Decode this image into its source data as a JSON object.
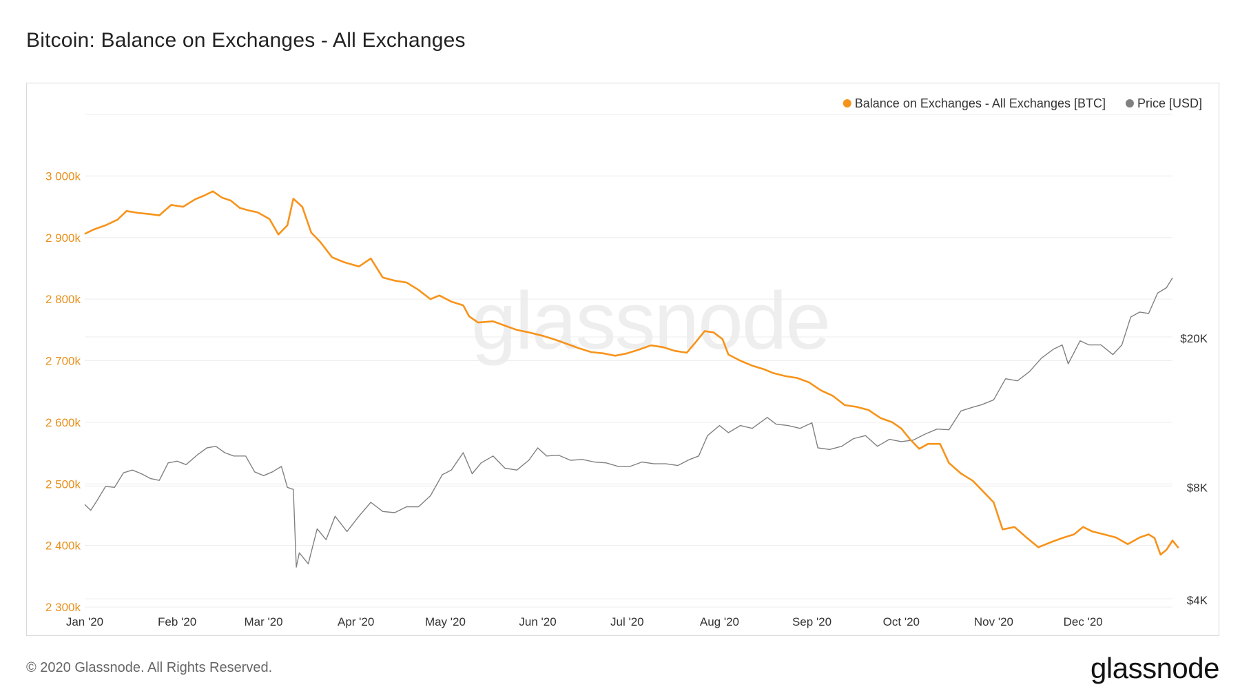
{
  "title": "Bitcoin: Balance on Exchanges - All Exchanges",
  "footer": "© 2020 Glassnode. All Rights Reserved.",
  "logo": "glassnode",
  "watermark": "glassnode",
  "colors": {
    "balance": "#f7931a",
    "price": "#808080",
    "grid": "#ececec",
    "left_axis_text": "#e8901b",
    "right_axis_text": "#333333"
  },
  "chart_data": {
    "type": "line",
    "title": "Bitcoin: Balance on Exchanges - All Exchanges",
    "x_range": [
      "2020-01-01",
      "2020-12-31"
    ],
    "x_ticks": [
      {
        "label": "Jan '20",
        "date": "2020-01-01"
      },
      {
        "label": "Feb '20",
        "date": "2020-02-01"
      },
      {
        "label": "Mar '20",
        "date": "2020-03-01"
      },
      {
        "label": "Apr '20",
        "date": "2020-04-01"
      },
      {
        "label": "May '20",
        "date": "2020-05-01"
      },
      {
        "label": "Jun '20",
        "date": "2020-06-01"
      },
      {
        "label": "Jul '20",
        "date": "2020-07-01"
      },
      {
        "label": "Aug '20",
        "date": "2020-08-01"
      },
      {
        "label": "Sep '20",
        "date": "2020-09-01"
      },
      {
        "label": "Oct '20",
        "date": "2020-10-01"
      },
      {
        "label": "Nov '20",
        "date": "2020-11-01"
      },
      {
        "label": "Dec '20",
        "date": "2020-12-01"
      }
    ],
    "y_left": {
      "unit": "BTC",
      "ylim": [
        2300000,
        3100000
      ],
      "ticks": [
        {
          "label": "2 300k",
          "value": 2300000
        },
        {
          "label": "2 400k",
          "value": 2400000
        },
        {
          "label": "2 500k",
          "value": 2500000
        },
        {
          "label": "2 600k",
          "value": 2600000
        },
        {
          "label": "2 700k",
          "value": 2700000
        },
        {
          "label": "2 800k",
          "value": 2800000
        },
        {
          "label": "2 900k",
          "value": 2900000
        },
        {
          "label": "3 000k",
          "value": 3000000
        }
      ]
    },
    "y_right": {
      "unit": "USD",
      "scale": "log",
      "ticks": [
        {
          "label": "$4K",
          "value": 4000
        },
        {
          "label": "$8K",
          "value": 8000
        },
        {
          "label": "$20K",
          "value": 20000
        }
      ]
    },
    "legend": {
      "placement": "top-right"
    },
    "grid": true,
    "series": [
      {
        "name": "Balance on Exchanges - All Exchanges [BTC]",
        "axis": "left",
        "color": "#f7931a",
        "points": [
          [
            "2020-01-01",
            2906000
          ],
          [
            "2020-01-04",
            2913000
          ],
          [
            "2020-01-08",
            2920000
          ],
          [
            "2020-01-12",
            2929000
          ],
          [
            "2020-01-15",
            2943000
          ],
          [
            "2020-01-19",
            2940000
          ],
          [
            "2020-01-23",
            2938000
          ],
          [
            "2020-01-26",
            2936000
          ],
          [
            "2020-01-30",
            2953000
          ],
          [
            "2020-02-03",
            2950000
          ],
          [
            "2020-02-07",
            2962000
          ],
          [
            "2020-02-10",
            2968000
          ],
          [
            "2020-02-13",
            2975000
          ],
          [
            "2020-02-16",
            2965000
          ],
          [
            "2020-02-19",
            2960000
          ],
          [
            "2020-02-22",
            2948000
          ],
          [
            "2020-02-25",
            2944000
          ],
          [
            "2020-02-28",
            2941000
          ],
          [
            "2020-03-03",
            2930000
          ],
          [
            "2020-03-06",
            2905000
          ],
          [
            "2020-03-09",
            2920000
          ],
          [
            "2020-03-11",
            2963000
          ],
          [
            "2020-03-14",
            2950000
          ],
          [
            "2020-03-17",
            2908000
          ],
          [
            "2020-03-20",
            2893000
          ],
          [
            "2020-03-24",
            2868000
          ],
          [
            "2020-03-28",
            2860000
          ],
          [
            "2020-04-02",
            2853000
          ],
          [
            "2020-04-06",
            2866000
          ],
          [
            "2020-04-10",
            2835000
          ],
          [
            "2020-04-14",
            2830000
          ],
          [
            "2020-04-18",
            2827000
          ],
          [
            "2020-04-22",
            2815000
          ],
          [
            "2020-04-26",
            2800000
          ],
          [
            "2020-04-29",
            2806000
          ],
          [
            "2020-05-03",
            2796000
          ],
          [
            "2020-05-07",
            2790000
          ],
          [
            "2020-05-09",
            2772000
          ],
          [
            "2020-05-12",
            2762000
          ],
          [
            "2020-05-17",
            2764000
          ],
          [
            "2020-05-21",
            2757000
          ],
          [
            "2020-05-25",
            2750000
          ],
          [
            "2020-05-29",
            2746000
          ],
          [
            "2020-06-03",
            2740000
          ],
          [
            "2020-06-07",
            2734000
          ],
          [
            "2020-06-11",
            2727000
          ],
          [
            "2020-06-15",
            2720000
          ],
          [
            "2020-06-19",
            2714000
          ],
          [
            "2020-06-23",
            2712000
          ],
          [
            "2020-06-27",
            2708000
          ],
          [
            "2020-07-01",
            2712000
          ],
          [
            "2020-07-05",
            2718000
          ],
          [
            "2020-07-09",
            2725000
          ],
          [
            "2020-07-13",
            2722000
          ],
          [
            "2020-07-17",
            2716000
          ],
          [
            "2020-07-21",
            2713000
          ],
          [
            "2020-07-24",
            2730000
          ],
          [
            "2020-07-27",
            2748000
          ],
          [
            "2020-07-30",
            2746000
          ],
          [
            "2020-08-02",
            2735000
          ],
          [
            "2020-08-04",
            2710000
          ],
          [
            "2020-08-08",
            2700000
          ],
          [
            "2020-08-12",
            2692000
          ],
          [
            "2020-08-16",
            2686000
          ],
          [
            "2020-08-19",
            2680000
          ],
          [
            "2020-08-23",
            2675000
          ],
          [
            "2020-08-27",
            2672000
          ],
          [
            "2020-08-31",
            2665000
          ],
          [
            "2020-09-04",
            2652000
          ],
          [
            "2020-09-08",
            2643000
          ],
          [
            "2020-09-12",
            2628000
          ],
          [
            "2020-09-16",
            2625000
          ],
          [
            "2020-09-20",
            2620000
          ],
          [
            "2020-09-24",
            2607000
          ],
          [
            "2020-09-28",
            2600000
          ],
          [
            "2020-10-01",
            2590000
          ],
          [
            "2020-10-04",
            2572000
          ],
          [
            "2020-10-07",
            2557000
          ],
          [
            "2020-10-10",
            2565000
          ],
          [
            "2020-10-14",
            2565000
          ],
          [
            "2020-10-17",
            2534000
          ],
          [
            "2020-10-21",
            2517000
          ],
          [
            "2020-10-25",
            2505000
          ],
          [
            "2020-10-29",
            2485000
          ],
          [
            "2020-11-01",
            2470000
          ],
          [
            "2020-11-04",
            2426000
          ],
          [
            "2020-11-08",
            2430000
          ],
          [
            "2020-11-12",
            2413000
          ],
          [
            "2020-11-16",
            2397000
          ],
          [
            "2020-11-20",
            2405000
          ],
          [
            "2020-11-24",
            2412000
          ],
          [
            "2020-11-28",
            2418000
          ],
          [
            "2020-12-01",
            2430000
          ],
          [
            "2020-12-04",
            2423000
          ],
          [
            "2020-12-08",
            2418000
          ],
          [
            "2020-12-12",
            2413000
          ],
          [
            "2020-12-16",
            2402000
          ],
          [
            "2020-12-20",
            2413000
          ],
          [
            "2020-12-23",
            2418000
          ],
          [
            "2020-12-25",
            2412000
          ],
          [
            "2020-12-27",
            2385000
          ],
          [
            "2020-12-29",
            2393000
          ],
          [
            "2020-12-31",
            2408000
          ],
          [
            "2021-01-02",
            2396000
          ]
        ]
      },
      {
        "name": "Price [USD]",
        "axis": "right",
        "color": "#808080",
        "points": [
          [
            "2020-01-01",
            7200
          ],
          [
            "2020-01-03",
            6950
          ],
          [
            "2020-01-05",
            7350
          ],
          [
            "2020-01-08",
            8050
          ],
          [
            "2020-01-11",
            8000
          ],
          [
            "2020-01-14",
            8750
          ],
          [
            "2020-01-17",
            8900
          ],
          [
            "2020-01-20",
            8700
          ],
          [
            "2020-01-23",
            8450
          ],
          [
            "2020-01-26",
            8350
          ],
          [
            "2020-01-29",
            9300
          ],
          [
            "2020-02-01",
            9400
          ],
          [
            "2020-02-04",
            9200
          ],
          [
            "2020-02-08",
            9800
          ],
          [
            "2020-02-11",
            10200
          ],
          [
            "2020-02-14",
            10300
          ],
          [
            "2020-02-17",
            9900
          ],
          [
            "2020-02-20",
            9700
          ],
          [
            "2020-02-24",
            9700
          ],
          [
            "2020-02-27",
            8800
          ],
          [
            "2020-03-01",
            8600
          ],
          [
            "2020-03-04",
            8800
          ],
          [
            "2020-03-07",
            9100
          ],
          [
            "2020-03-09",
            8000
          ],
          [
            "2020-03-11",
            7900
          ],
          [
            "2020-03-12",
            4900
          ],
          [
            "2020-03-13",
            5350
          ],
          [
            "2020-03-16",
            5000
          ],
          [
            "2020-03-19",
            6200
          ],
          [
            "2020-03-22",
            5800
          ],
          [
            "2020-03-25",
            6700
          ],
          [
            "2020-03-29",
            6100
          ],
          [
            "2020-04-02",
            6700
          ],
          [
            "2020-04-06",
            7300
          ],
          [
            "2020-04-10",
            6900
          ],
          [
            "2020-04-14",
            6850
          ],
          [
            "2020-04-18",
            7100
          ],
          [
            "2020-04-22",
            7100
          ],
          [
            "2020-04-26",
            7600
          ],
          [
            "2020-04-30",
            8650
          ],
          [
            "2020-05-03",
            8900
          ],
          [
            "2020-05-07",
            9900
          ],
          [
            "2020-05-10",
            8700
          ],
          [
            "2020-05-13",
            9300
          ],
          [
            "2020-05-17",
            9700
          ],
          [
            "2020-05-21",
            9000
          ],
          [
            "2020-05-25",
            8900
          ],
          [
            "2020-05-29",
            9450
          ],
          [
            "2020-06-01",
            10200
          ],
          [
            "2020-06-04",
            9700
          ],
          [
            "2020-06-08",
            9750
          ],
          [
            "2020-06-12",
            9450
          ],
          [
            "2020-06-16",
            9500
          ],
          [
            "2020-06-20",
            9350
          ],
          [
            "2020-06-24",
            9300
          ],
          [
            "2020-06-28",
            9100
          ],
          [
            "2020-07-02",
            9100
          ],
          [
            "2020-07-06",
            9350
          ],
          [
            "2020-07-10",
            9250
          ],
          [
            "2020-07-14",
            9250
          ],
          [
            "2020-07-18",
            9150
          ],
          [
            "2020-07-22",
            9500
          ],
          [
            "2020-07-25",
            9700
          ],
          [
            "2020-07-28",
            11000
          ],
          [
            "2020-08-01",
            11700
          ],
          [
            "2020-08-04",
            11200
          ],
          [
            "2020-08-08",
            11700
          ],
          [
            "2020-08-12",
            11500
          ],
          [
            "2020-08-17",
            12300
          ],
          [
            "2020-08-20",
            11800
          ],
          [
            "2020-08-24",
            11700
          ],
          [
            "2020-08-28",
            11500
          ],
          [
            "2020-09-01",
            11900
          ],
          [
            "2020-09-03",
            10200
          ],
          [
            "2020-09-07",
            10100
          ],
          [
            "2020-09-11",
            10300
          ],
          [
            "2020-09-15",
            10800
          ],
          [
            "2020-09-19",
            11000
          ],
          [
            "2020-09-23",
            10300
          ],
          [
            "2020-09-27",
            10750
          ],
          [
            "2020-10-01",
            10600
          ],
          [
            "2020-10-05",
            10700
          ],
          [
            "2020-10-09",
            11100
          ],
          [
            "2020-10-13",
            11450
          ],
          [
            "2020-10-17",
            11400
          ],
          [
            "2020-10-21",
            12800
          ],
          [
            "2020-10-25",
            13100
          ],
          [
            "2020-10-28",
            13300
          ],
          [
            "2020-11-01",
            13700
          ],
          [
            "2020-11-05",
            15600
          ],
          [
            "2020-11-09",
            15400
          ],
          [
            "2020-11-13",
            16300
          ],
          [
            "2020-11-17",
            17700
          ],
          [
            "2020-11-21",
            18700
          ],
          [
            "2020-11-24",
            19200
          ],
          [
            "2020-11-26",
            17100
          ],
          [
            "2020-11-30",
            19700
          ],
          [
            "2020-12-03",
            19200
          ],
          [
            "2020-12-07",
            19200
          ],
          [
            "2020-12-11",
            18100
          ],
          [
            "2020-12-14",
            19200
          ],
          [
            "2020-12-17",
            22800
          ],
          [
            "2020-12-20",
            23500
          ],
          [
            "2020-12-23",
            23300
          ],
          [
            "2020-12-26",
            26400
          ],
          [
            "2020-12-29",
            27300
          ],
          [
            "2020-12-31",
            29000
          ]
        ]
      }
    ]
  }
}
